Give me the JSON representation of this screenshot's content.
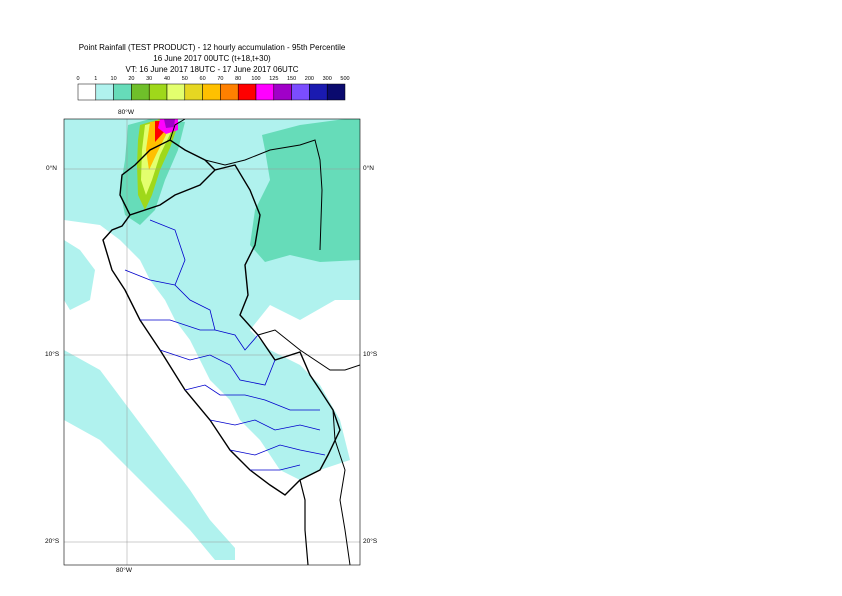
{
  "title": {
    "line1": "Point Rainfall (TEST PRODUCT) - 12 hourly accumulation - 95th Percentile",
    "line2": "16 June 2017 00UTC (t+18,t+30)",
    "line3": "VT: 16 June 2017 18UTC - 17 June 2017 06UTC"
  },
  "legend": {
    "thresholds": [
      "0",
      "1",
      "10",
      "20",
      "30",
      "40",
      "50",
      "60",
      "70",
      "80",
      "100",
      "125",
      "150",
      "200",
      "300",
      "500"
    ],
    "colors": [
      "#ffffff",
      "#b0f2ee",
      "#66dcb9",
      "#6fbf2a",
      "#9fd81a",
      "#e3ff6e",
      "#e6d722",
      "#ffc000",
      "#ff8000",
      "#ff0000",
      "#ff00ff",
      "#a000c8",
      "#7b4dff",
      "#1a1ab0",
      "#0a0a6e"
    ]
  },
  "map": {
    "lon_labels": {
      "top": "80°W",
      "bottom": "80°W"
    },
    "lat_labels": [
      "0°N",
      "10°S",
      "20°S"
    ],
    "fill_colors": {
      "light": "#b0f2ee",
      "medium": "#66dcb9",
      "country_border": "#000000",
      "region_border": "#0000cc"
    }
  }
}
